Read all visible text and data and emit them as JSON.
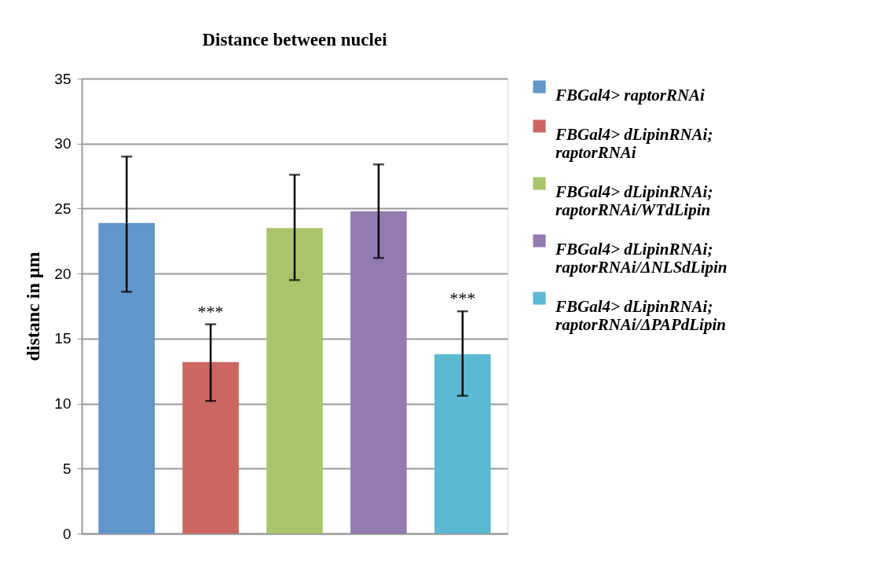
{
  "chart_data": {
    "type": "bar",
    "title": "Distance between nuclei",
    "ylabel": "distanc in µm",
    "categories": [
      null,
      null,
      null,
      null,
      null
    ],
    "series": [
      {
        "name": "FBGal4> raptorRNAi",
        "color": "#6096c9",
        "values": [
          23.9,
          null,
          null,
          null,
          null
        ],
        "errors": [
          [
            18.6,
            29.0
          ],
          null,
          null,
          null,
          null
        ]
      },
      {
        "name": "FBGal4> dLipinRNAi; raptorRNAi",
        "color": "#cc6660",
        "values": [
          null,
          13.2,
          null,
          null,
          null
        ],
        "errors": [
          null,
          [
            10.2,
            16.1
          ],
          null,
          null,
          null
        ],
        "value_labels": [
          null,
          "***",
          null,
          null,
          null
        ]
      },
      {
        "name": "FBGal4> dLipinRNAi; raptorRNAi/WTdLipin",
        "color": "#a9c46b",
        "values": [
          null,
          null,
          23.5,
          null,
          null
        ],
        "errors": [
          null,
          null,
          [
            19.5,
            27.6
          ],
          null,
          null
        ]
      },
      {
        "name": "FBGal4> dLipinRNAi; raptorRNAi/ΔNLSdLipin",
        "color": "#937bb2",
        "values": [
          null,
          null,
          null,
          24.8,
          null
        ],
        "errors": [
          null,
          null,
          null,
          [
            21.2,
            28.4
          ],
          null
        ]
      },
      {
        "name": "FBGal4> dLipinRNAi; raptorRNAi/ΔPAPdLipin",
        "color": "#5bb9d2",
        "values": [
          null,
          null,
          null,
          null,
          13.8
        ],
        "errors": [
          null,
          null,
          null,
          null,
          [
            10.6,
            17.1
          ]
        ],
        "value_labels": [
          null,
          null,
          null,
          null,
          "***"
        ]
      }
    ],
    "ylim": [
      0,
      35
    ],
    "yticks": [
      0,
      5,
      10,
      15,
      20,
      25,
      30,
      35
    ],
    "grid": "y",
    "legend": "right",
    "tick_labels": "y"
  }
}
